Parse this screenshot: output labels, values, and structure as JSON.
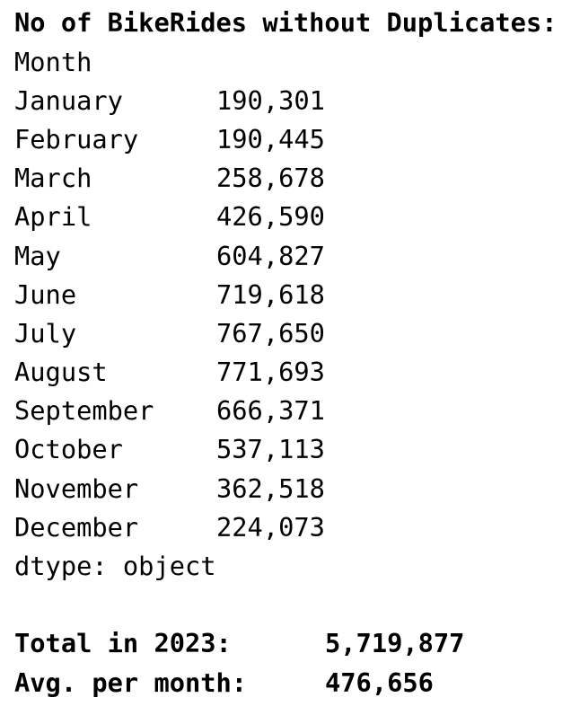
{
  "title": "No of BikeRides without Duplicates:",
  "index_name": "Month",
  "rows": [
    [
      "January",
      "190,301"
    ],
    [
      "February",
      "190,445"
    ],
    [
      "March",
      "258,678"
    ],
    [
      "April",
      "426,590"
    ],
    [
      "May",
      "604,827"
    ],
    [
      "June",
      "719,618"
    ],
    [
      "July",
      "767,650"
    ],
    [
      "August",
      "771,693"
    ],
    [
      "September",
      "666,371"
    ],
    [
      "October",
      "537,113"
    ],
    [
      "November",
      "362,518"
    ],
    [
      "December",
      "224,073"
    ]
  ],
  "dtype": "dtype: object",
  "totals": [
    [
      "Total in 2023:",
      "5,719,877"
    ],
    [
      "Avg. per month:",
      "476,656"
    ]
  ]
}
